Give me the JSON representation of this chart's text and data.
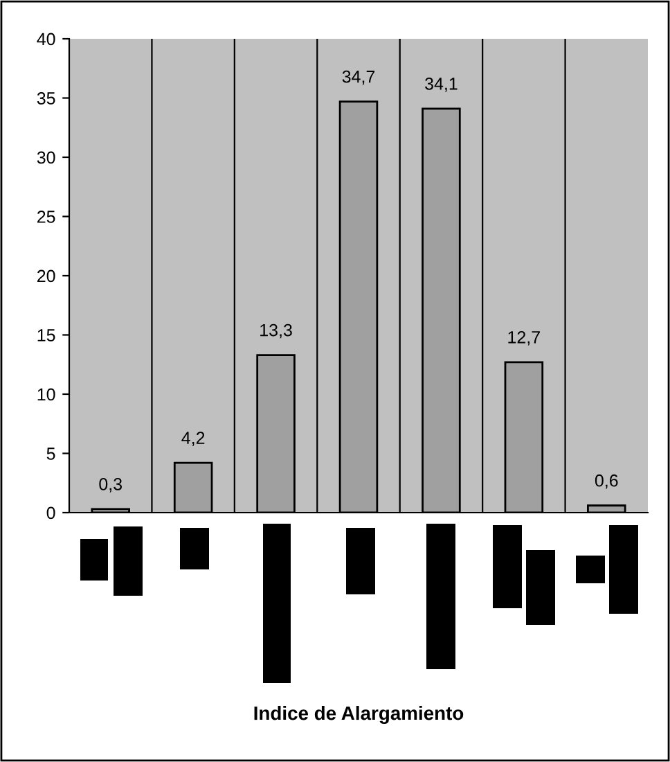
{
  "chart_data": {
    "type": "bar",
    "annotations": [
      "Indice de Alargamiento"
    ],
    "categories": [
      null,
      null,
      null,
      null,
      null,
      null,
      null
    ],
    "values": [
      0.3,
      4.2,
      13.3,
      34.7,
      34.1,
      12.7,
      0.6
    ],
    "value_labels": [
      "0,3",
      "4,2",
      "13,3",
      "34,7",
      "34,1",
      "12,7",
      "0,6"
    ],
    "color": "#a0a0a0",
    "ylim": [
      0,
      40
    ],
    "yticks": [
      0,
      5,
      10,
      15,
      20,
      25,
      30,
      35,
      40
    ],
    "grid": "x"
  }
}
